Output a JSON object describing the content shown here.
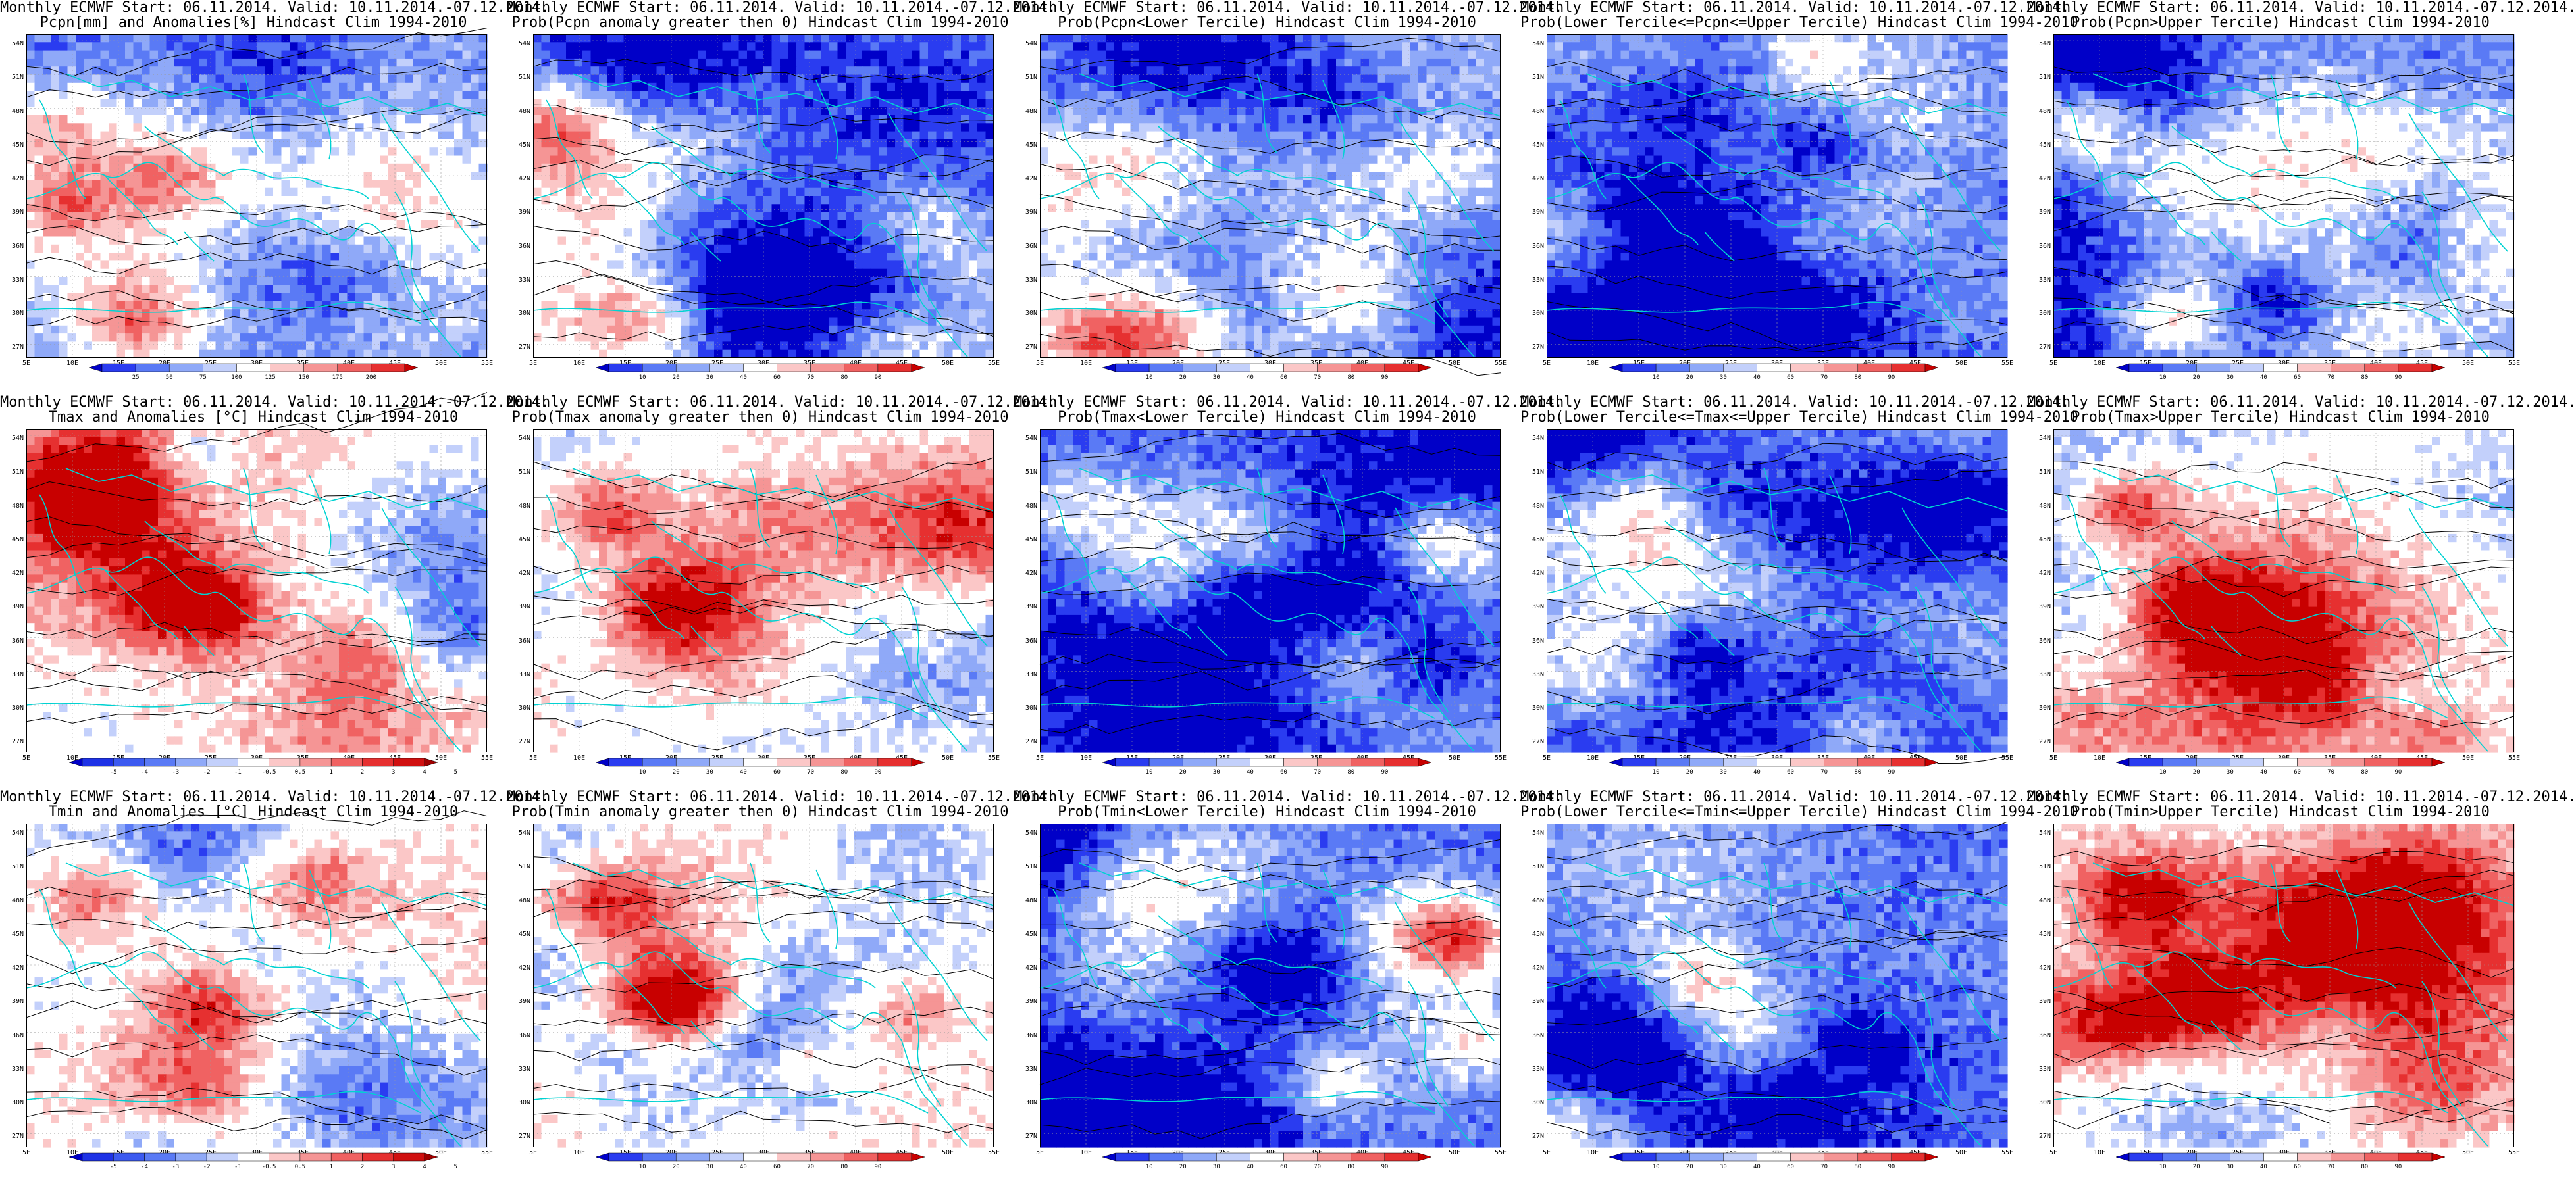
{
  "panels": [
    {
      "title1": "Monthly ECMWF Start: 06.11.2014. Valid: 10.11.2014.-07.12.2014.",
      "title2": "Pcpn[mm] and Anomalies[%] Hindcast Clim 1994-2010",
      "palette": "pcpn",
      "cbar": "pcpn_anom"
    },
    {
      "title1": "Monthly ECMWF Start: 06.11.2014. Valid: 10.11.2014.-07.12.2014.",
      "title2": "Prob(Pcpn anomaly greater then 0) Hindcast Clim 1994-2010",
      "palette": "pcpn",
      "cbar": "prob"
    },
    {
      "title1": "Monthly ECMWF Start: 06.11.2014. Valid: 10.11.2014.-07.12.2014.",
      "title2": "Prob(Pcpn<Lower Tercile) Hindcast Clim 1994-2010",
      "palette": "pcpn_lower",
      "cbar": "prob"
    },
    {
      "title1": "Monthly ECMWF Start: 06.11.2014. Valid: 10.11.2014.-07.12.2014.",
      "title2": "Prob(Lower Tercile<=Pcpn<=Upper Tercile) Hindcast Clim 1994-2010",
      "palette": "pcpn_mid",
      "cbar": "prob"
    },
    {
      "title1": "Monthly ECMWF Start: 06.11.2014. Valid: 10.11.2014.-07.12.2014.",
      "title2": "Prob(Pcpn>Upper Tercile) Hindcast Clim 1994-2010",
      "palette": "pcpn",
      "cbar": "prob"
    },
    {
      "title1": "Monthly ECMWF Start: 06.11.2014. Valid: 10.11.2014.-07.12.2014.",
      "title2": "Tmax and Anomalies [°C] Hindcast Clim 1994-2010",
      "palette": "tanom",
      "cbar": "temp_anom"
    },
    {
      "title1": "Monthly ECMWF Start: 06.11.2014. Valid: 10.11.2014.-07.12.2014.",
      "title2": "Prob(Tmax anomaly greater then 0) Hindcast Clim 1994-2010",
      "palette": "tprob",
      "cbar": "prob"
    },
    {
      "title1": "Monthly ECMWF Start: 06.11.2014. Valid: 10.11.2014.-07.12.2014.",
      "title2": "Prob(Tmax<Lower Tercile) Hindcast Clim 1994-2010",
      "palette": "tlower",
      "cbar": "prob"
    },
    {
      "title1": "Monthly ECMWF Start: 06.11.2014. Valid: 10.11.2014.-07.12.2014.",
      "title2": "Prob(Lower Tercile<=Tmax<=Upper Tercile) Hindcast Clim 1994-2010",
      "palette": "tmid",
      "cbar": "prob"
    },
    {
      "title1": "Monthly ECMWF Start: 06.11.2014. Valid: 10.11.2014.-07.12.2014.",
      "title2": "Prob(Tmax>Upper Tercile) Hindcast Clim 1994-2010",
      "palette": "tprob",
      "cbar": "prob"
    },
    {
      "title1": "Monthly ECMWF Start: 06.11.2014. Valid: 10.11.2014.-07.12.2014.",
      "title2": "Tmin and Anomalies [°C] Hindcast Clim 1994-2010",
      "palette": "tanom",
      "cbar": "temp_anom"
    },
    {
      "title1": "Monthly ECMWF Start: 06.11.2014. Valid: 10.11.2014.-07.12.2014.",
      "title2": "Prob(Tmin anomaly greater then 0) Hindcast Clim 1994-2010",
      "palette": "tprob",
      "cbar": "prob"
    },
    {
      "title1": "Monthly ECMWF Start: 06.11.2014. Valid: 10.11.2014.-07.12.2014.",
      "title2": "Prob(Tmin<Lower Tercile) Hindcast Clim 1994-2010",
      "palette": "tlower",
      "cbar": "prob"
    },
    {
      "title1": "Monthly ECMWF Start: 06.11.2014. Valid: 10.11.2014.-07.12.2014.",
      "title2": "Prob(Lower Tercile<=Tmin<=Upper Tercile) Hindcast Clim 1994-2010",
      "palette": "tmid",
      "cbar": "prob"
    },
    {
      "title1": "Monthly ECMWF Start: 06.11.2014. Valid: 10.11.2014.-07.12.2014.",
      "title2": "Prob(Tmin>Upper Tercile) Hindcast Clim 1994-2010",
      "palette": "tprob",
      "cbar": "prob"
    }
  ],
  "lat_labels": [
    "54N",
    "51N",
    "48N",
    "45N",
    "42N",
    "39N",
    "36N",
    "33N",
    "30N",
    "27N"
  ],
  "lon_labels": [
    "5E",
    "10E",
    "15E",
    "20E",
    "25E",
    "30E",
    "35E",
    "40E",
    "45E",
    "50E",
    "55E"
  ],
  "colorbars": {
    "pcpn_anom": {
      "labels": [
        "25",
        "50",
        "75",
        "100",
        "125",
        "150",
        "175",
        "200"
      ],
      "colors": [
        "#0000c8",
        "#2a3cf0",
        "#5a7af5",
        "#8fa9f8",
        "#c3d0fb",
        "#ffffff",
        "#fbc7c7",
        "#f59595",
        "#f06262",
        "#e63030",
        "#c80000"
      ]
    },
    "prob": {
      "labels": [
        "10",
        "20",
        "30",
        "40",
        "60",
        "70",
        "80",
        "90"
      ],
      "colors": [
        "#0000c8",
        "#2a3cf0",
        "#5a7af5",
        "#8fa9f8",
        "#c3d0fb",
        "#ffffff",
        "#fbc7c7",
        "#f59595",
        "#f06262",
        "#e63030",
        "#c80000"
      ]
    },
    "temp_anom": {
      "labels": [
        "-5",
        "-4",
        "-3",
        "-2",
        "-1",
        "-0.5",
        "0.5",
        "1",
        "2",
        "3",
        "4",
        "5"
      ],
      "colors": [
        "#0000c8",
        "#1e32e6",
        "#3c5af0",
        "#5a7af5",
        "#8fa9f8",
        "#c3d0fb",
        "#ffffff",
        "#fbc7c7",
        "#f59595",
        "#f06262",
        "#e63030",
        "#d01010",
        "#a00000"
      ]
    }
  },
  "colors": {
    "coast": "#00d2d2",
    "contour": "#000000",
    "frame": "#000000"
  }
}
